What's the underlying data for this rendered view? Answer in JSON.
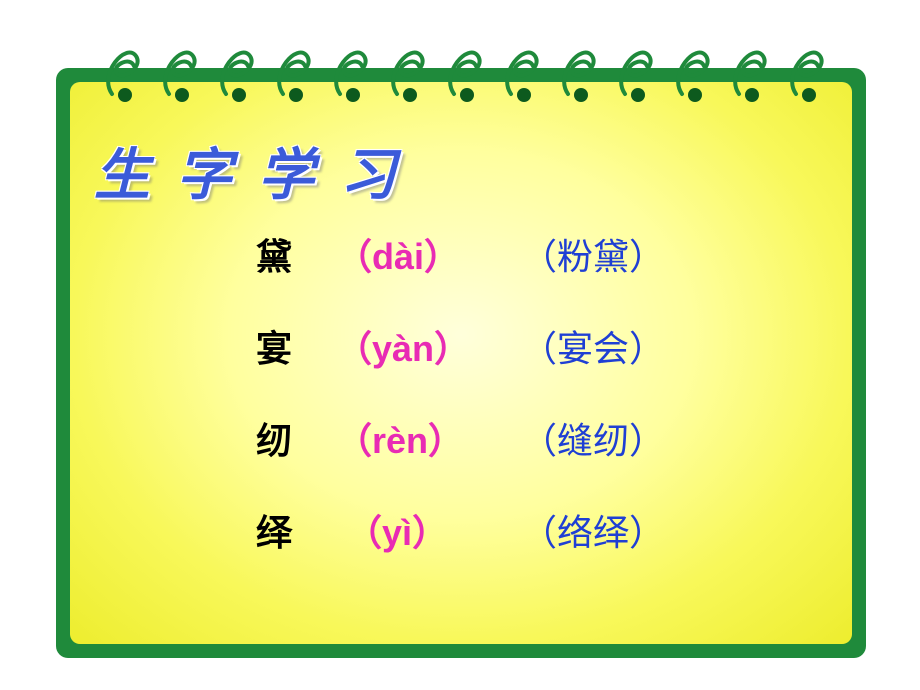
{
  "title": "生字学习",
  "colors": {
    "pad_outer": "#1f8a3b",
    "pad_inner_center": "#ffffdb",
    "pad_inner_edge": "#eded2e",
    "spiral_stroke": "#1f8a3b",
    "spiral_hole": "#0d5a1e",
    "title_color": "#3b5bd9",
    "char_color": "#000000",
    "pinyin_color": "#e82bb4",
    "word_color": "#1f3fd4",
    "background": "#ffffff"
  },
  "typography": {
    "title_fontsize": 56,
    "entry_fontsize": 36,
    "title_letter_spacing": 26
  },
  "spiral_count": 13,
  "entries": [
    {
      "char": "黛",
      "pinyin_open": "（",
      "pinyin": "dài",
      "pinyin_close": "）",
      "word": "（粉黛）"
    },
    {
      "char": "宴",
      "pinyin_open": "（",
      "pinyin": "yàn",
      "pinyin_close": "）",
      "word": "（宴会）"
    },
    {
      "char": "纫",
      "pinyin_open": "（",
      "pinyin": "rèn",
      "pinyin_close": "）",
      "word": "（缝纫）"
    },
    {
      "char": "绎",
      "pinyin_open": "（",
      "pinyin": "yì",
      "pinyin_close": "）",
      "word": "（络绎）"
    }
  ]
}
